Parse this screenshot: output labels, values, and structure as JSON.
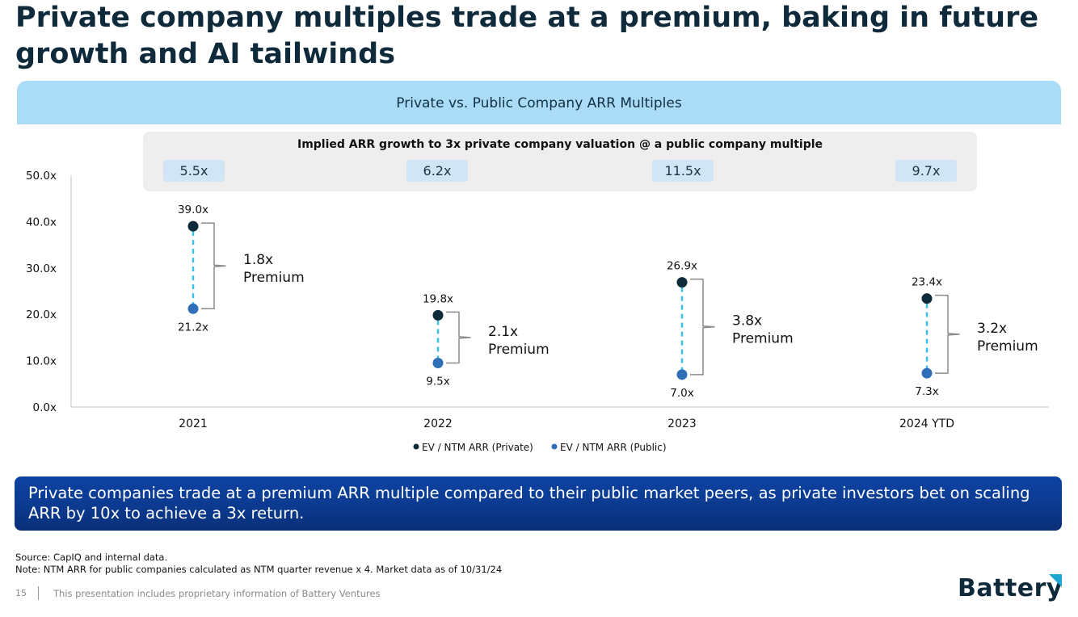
{
  "slide": {
    "title_line1": "Private company multiples trade at a premium, baking in future",
    "title_line2": "growth and AI tailwinds",
    "panel_title": "Private vs. Public Company ARR Multiples",
    "growth_title": "Implied ARR growth to 3x private company valuation @ a public company multiple",
    "growth_values": [
      "5.5x",
      "6.2x",
      "11.5x",
      "9.7x"
    ],
    "callout": "Private companies trade at a premium ARR multiple compared to their public market peers, as private investors bet on scaling ARR by 10x to achieve a 3x return.",
    "source": "Source: CapIQ and internal data.",
    "note": "Note: NTM ARR for public companies calculated as NTM quarter revenue x 4. Market data as of 10/31/24",
    "page_number": "15",
    "footer": "This presentation includes proprietary information of Battery Ventures",
    "logo_text": "Battery"
  },
  "colors": {
    "private": "#0d2b3a",
    "public": "#2f6fb7",
    "connector": "#3cc0e6",
    "bracket": "#8a8a8a",
    "panel_header": "#aadcf7",
    "callout": "#0b3a8f",
    "logo_accent": "#1ea7d4"
  },
  "chart_data": {
    "type": "scatter",
    "title": "",
    "xlabel": "",
    "ylabel": "",
    "categories": [
      "2021",
      "2022",
      "2023",
      "2024 YTD"
    ],
    "ylim": [
      0,
      50
    ],
    "yticks": [
      0,
      10,
      20,
      30,
      40,
      50
    ],
    "ytick_labels": [
      "0.0x",
      "10.0x",
      "20.0x",
      "30.0x",
      "40.0x",
      "50.0x"
    ],
    "grid": false,
    "legend_position": "bottom",
    "series": [
      {
        "name": "EV / NTM ARR (Private)",
        "values": [
          39.0,
          19.8,
          26.9,
          23.4
        ],
        "labels": [
          "39.0x",
          "19.8x",
          "26.9x",
          "23.4x"
        ]
      },
      {
        "name": "EV / NTM ARR (Public)",
        "values": [
          21.2,
          9.5,
          7.0,
          7.3
        ],
        "labels": [
          "21.2x",
          "9.5x",
          "7.0x",
          "7.3x"
        ]
      }
    ],
    "annotations": [
      {
        "value": "1.8x",
        "text": "Premium"
      },
      {
        "value": "2.1x",
        "text": "Premium"
      },
      {
        "value": "3.8x",
        "text": "Premium"
      },
      {
        "value": "3.2x",
        "text": "Premium"
      }
    ]
  }
}
